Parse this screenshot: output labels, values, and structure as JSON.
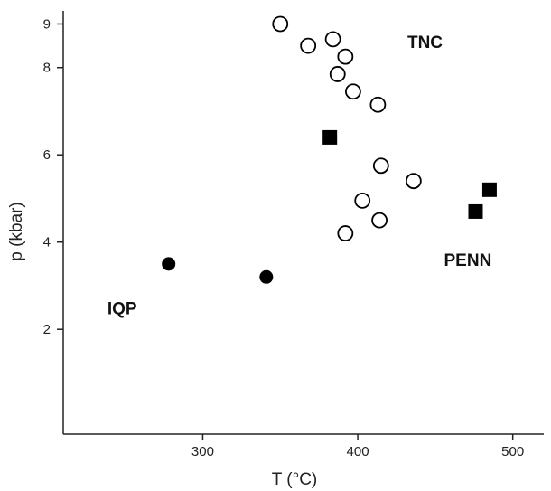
{
  "chart_data": {
    "type": "scatter",
    "title": "",
    "xlabel": "T (°C)",
    "ylabel": "p (kbar)",
    "xlim": [
      210,
      520
    ],
    "ylim": [
      -0.4,
      9.3
    ],
    "x_ticks": [
      300,
      400,
      500
    ],
    "y_ticks": [
      2,
      4,
      6,
      8,
      9
    ],
    "grid": false,
    "legend": "none",
    "series": [
      {
        "marker": "open-circle",
        "color": "#000000",
        "points": [
          {
            "x": 350,
            "y": 9.0
          },
          {
            "x": 384,
            "y": 8.65
          },
          {
            "x": 368,
            "y": 8.5
          },
          {
            "x": 392,
            "y": 8.25
          },
          {
            "x": 387,
            "y": 7.85
          },
          {
            "x": 397,
            "y": 7.45
          },
          {
            "x": 413,
            "y": 7.15
          },
          {
            "x": 415,
            "y": 5.75
          },
          {
            "x": 436,
            "y": 5.4
          },
          {
            "x": 403,
            "y": 4.95
          },
          {
            "x": 414,
            "y": 4.5
          },
          {
            "x": 392,
            "y": 4.2
          }
        ]
      },
      {
        "marker": "filled-square",
        "color": "#000000",
        "points": [
          {
            "x": 382,
            "y": 6.4
          },
          {
            "x": 485,
            "y": 5.2
          },
          {
            "x": 476,
            "y": 4.7
          }
        ]
      },
      {
        "marker": "filled-circle",
        "color": "#000000",
        "points": [
          {
            "x": 278,
            "y": 3.5
          },
          {
            "x": 341,
            "y": 3.2
          }
        ]
      }
    ],
    "annotations": [
      {
        "text": "TNC",
        "x": 432,
        "y": 8.45,
        "anchor": "start"
      },
      {
        "text": "PENN",
        "x": 471,
        "y": 3.45,
        "anchor": "middle"
      },
      {
        "text": "IQP",
        "x": 248,
        "y": 2.35,
        "anchor": "middle"
      }
    ]
  }
}
